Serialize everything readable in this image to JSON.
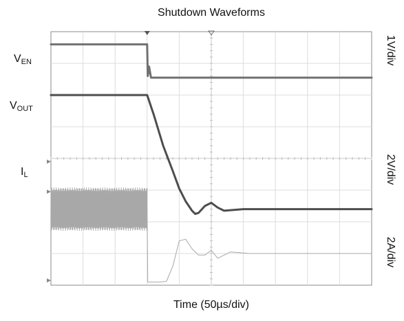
{
  "chart_data": {
    "type": "line",
    "title": "Shutdown Waveforms",
    "xlabel": "Time (50µs/div)",
    "ylabel": "",
    "x_divisions": 10,
    "y_divisions": 8,
    "time_per_div_us": 50,
    "grid": true,
    "xlim_us": [
      0,
      500
    ],
    "channel_labels": [
      {
        "main": "V",
        "sub": "EN"
      },
      {
        "main": "V",
        "sub": "OUT"
      },
      {
        "main": "I",
        "sub": "L"
      }
    ],
    "scale_labels": [
      "1V/div",
      "2V/div",
      "2A/div"
    ],
    "series": [
      {
        "name": "VEN",
        "color": "#707070",
        "x_us": [
          0,
          150,
          151,
          153,
          156,
          160,
          500
        ],
        "y_div": [
          7.6,
          7.6,
          6.6,
          6.9,
          6.55,
          6.55,
          6.55
        ]
      },
      {
        "name": "VOUT",
        "color": "#4d4d4d",
        "x_us": [
          0,
          150,
          160,
          175,
          190,
          200,
          210,
          220,
          225,
          230,
          240,
          250,
          260,
          270,
          300,
          350,
          500
        ],
        "y_div": [
          6.0,
          6.0,
          5.4,
          4.4,
          3.6,
          3.05,
          2.65,
          2.35,
          2.25,
          2.28,
          2.5,
          2.6,
          2.45,
          2.35,
          2.4,
          2.4,
          2.4
        ]
      },
      {
        "name": "IL",
        "color": "#a8a8a8",
        "x_us": [
          0,
          150,
          151,
          170,
          180,
          190,
          200,
          210,
          220,
          230,
          240,
          250,
          260,
          280,
          310,
          500
        ],
        "y_div": [
          2.4,
          2.4,
          0.1,
          0.1,
          0.12,
          0.6,
          1.4,
          1.45,
          1.15,
          0.95,
          0.95,
          1.1,
          0.85,
          1.05,
          1.0,
          1.0
        ],
        "ripple_before_us": 150,
        "ripple_center_div": 2.4,
        "ripple_pp_div": 1.35
      }
    ]
  }
}
